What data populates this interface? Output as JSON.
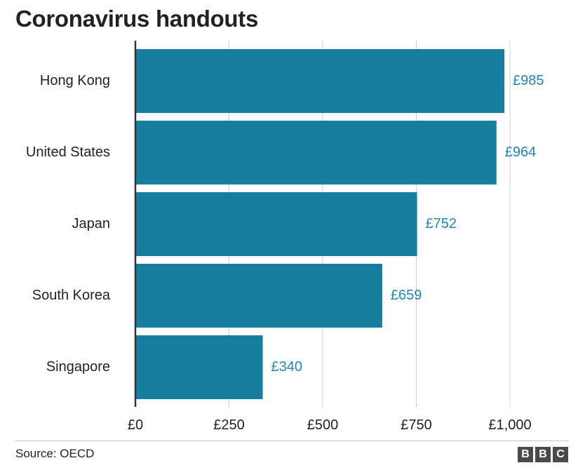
{
  "title": "Coronavirus handouts",
  "source": "Source: OECD",
  "brand": {
    "letters": [
      "B",
      "B",
      "C"
    ]
  },
  "colors": {
    "bar": "#167FA0",
    "value_label": "#1F88B0",
    "axis": "#333333",
    "grid": "#cccccc",
    "text": "#222222"
  },
  "chart_data": {
    "type": "bar",
    "orientation": "horizontal",
    "categories": [
      "Hong Kong",
      "United States",
      "Japan",
      "South Korea",
      "Singapore"
    ],
    "values": [
      985,
      964,
      752,
      659,
      340
    ],
    "value_labels": [
      "£985",
      "£964",
      "£752",
      "£659",
      "£340"
    ],
    "xlim": [
      0,
      1000
    ],
    "xticks": [
      0,
      250,
      500,
      750,
      1000
    ],
    "xtick_labels": [
      "£0",
      "£250",
      "£500",
      "£750",
      "£1,000"
    ],
    "grid": "vertical",
    "title": "Coronavirus handouts"
  }
}
